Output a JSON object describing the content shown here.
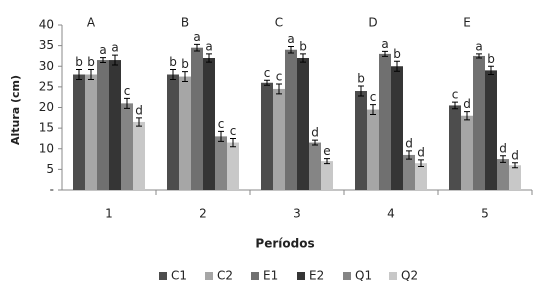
{
  "chart_data": {
    "type": "bar",
    "x_label": "Períodos",
    "y_label": "Altura (cm)",
    "categories": [
      "1",
      "2",
      "3",
      "4",
      "5"
    ],
    "group_labels": [
      "A",
      "B",
      "C",
      "D",
      "E"
    ],
    "ylim": [
      0,
      40
    ],
    "yticks": [
      {
        "value": 0,
        "label": "-"
      },
      5,
      10,
      15,
      20,
      25,
      30,
      35,
      40
    ],
    "legend": "bottom",
    "series": [
      {
        "name": "C1",
        "color": "#4d4d4d",
        "values": [
          28,
          28,
          26,
          24,
          20.5
        ],
        "errors": [
          1.2,
          1.2,
          0.6,
          1.2,
          0.8
        ],
        "letters": [
          "b",
          "b",
          "c",
          "b",
          "c"
        ]
      },
      {
        "name": "C2",
        "color": "#a6a6a6",
        "values": [
          28,
          27.5,
          24.5,
          19.5,
          18
        ],
        "errors": [
          1.2,
          1.2,
          1.2,
          1.2,
          1
        ],
        "letters": [
          "b",
          "b",
          "c",
          "c",
          "d"
        ]
      },
      {
        "name": "E1",
        "color": "#707070",
        "values": [
          31.5,
          34.5,
          34,
          33,
          32.5
        ],
        "errors": [
          0.6,
          0.8,
          0.8,
          0.6,
          0.5
        ],
        "letters": [
          "a",
          "a",
          "a",
          "a",
          "a"
        ]
      },
      {
        "name": "E2",
        "color": "#353535",
        "values": [
          31.5,
          32,
          32,
          30,
          29
        ],
        "errors": [
          1.2,
          1,
          1,
          1.2,
          1
        ],
        "letters": [
          "a",
          "a",
          "b",
          "b",
          "b"
        ]
      },
      {
        "name": "Q1",
        "color": "#858585",
        "values": [
          21,
          13,
          11.5,
          8.5,
          7.5
        ],
        "errors": [
          1.2,
          1.2,
          0.6,
          1,
          0.8
        ],
        "letters": [
          "c",
          "c",
          "d",
          "d",
          "d"
        ]
      },
      {
        "name": "Q2",
        "color": "#c8c8c8",
        "values": [
          16.5,
          11.5,
          7,
          6.5,
          6
        ],
        "errors": [
          1,
          1,
          0.6,
          0.8,
          0.6
        ],
        "letters": [
          "d",
          "c",
          "e",
          "d",
          "d"
        ]
      }
    ]
  }
}
